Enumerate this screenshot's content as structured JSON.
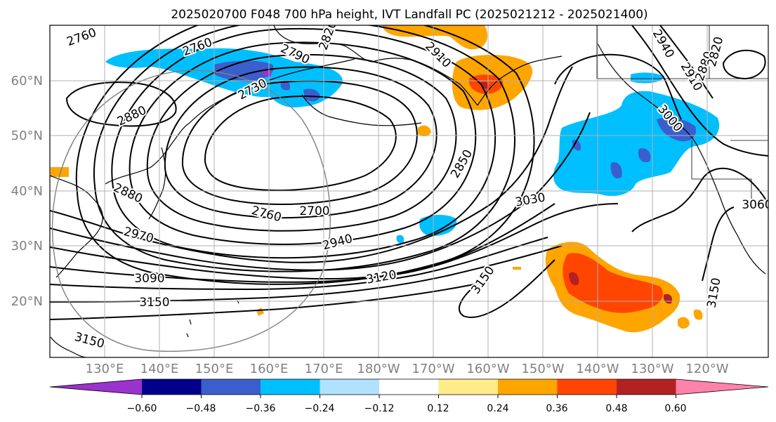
{
  "figure": {
    "title": "2025020700 F048 700 hPa height, IVT Landfall PC (2025021212 - 2025021400)"
  },
  "axes": {
    "lat_labels": [
      "60°N",
      "50°N",
      "40°N",
      "30°N",
      "20°N"
    ],
    "lon_labels": [
      "130°E",
      "140°E",
      "150°E",
      "160°E",
      "170°E",
      "180°W",
      "170°W",
      "160°W",
      "150°W",
      "140°W",
      "130°W",
      "120°W"
    ],
    "grid": true,
    "tick_label_color": "#808080"
  },
  "contours": {
    "labels": [
      "2760",
      "2760",
      "2790",
      "2820",
      "2910",
      "2940",
      "2910",
      "2880",
      "2820",
      "2730",
      "2880",
      "2880",
      "2970",
      "2760",
      "2700",
      "2940",
      "3090",
      "3150",
      "3150",
      "3120",
      "2850",
      "3030",
      "3150",
      "3060",
      "3150",
      "3000"
    ]
  },
  "colorbar": {
    "ticks": [
      "−0.60",
      "−0.48",
      "−0.36",
      "−0.24",
      "−0.12",
      "0.12",
      "0.24",
      "0.36",
      "0.48",
      "0.60"
    ],
    "colors": [
      "#9a32cd",
      "#00008b",
      "#3a5fcd",
      "#00bfff",
      "#b0e2ff",
      "#ffffff",
      "#ffec8b",
      "#ffa500",
      "#ff4500",
      "#b22222",
      "#ff82ab"
    ],
    "extend": "both"
  }
}
